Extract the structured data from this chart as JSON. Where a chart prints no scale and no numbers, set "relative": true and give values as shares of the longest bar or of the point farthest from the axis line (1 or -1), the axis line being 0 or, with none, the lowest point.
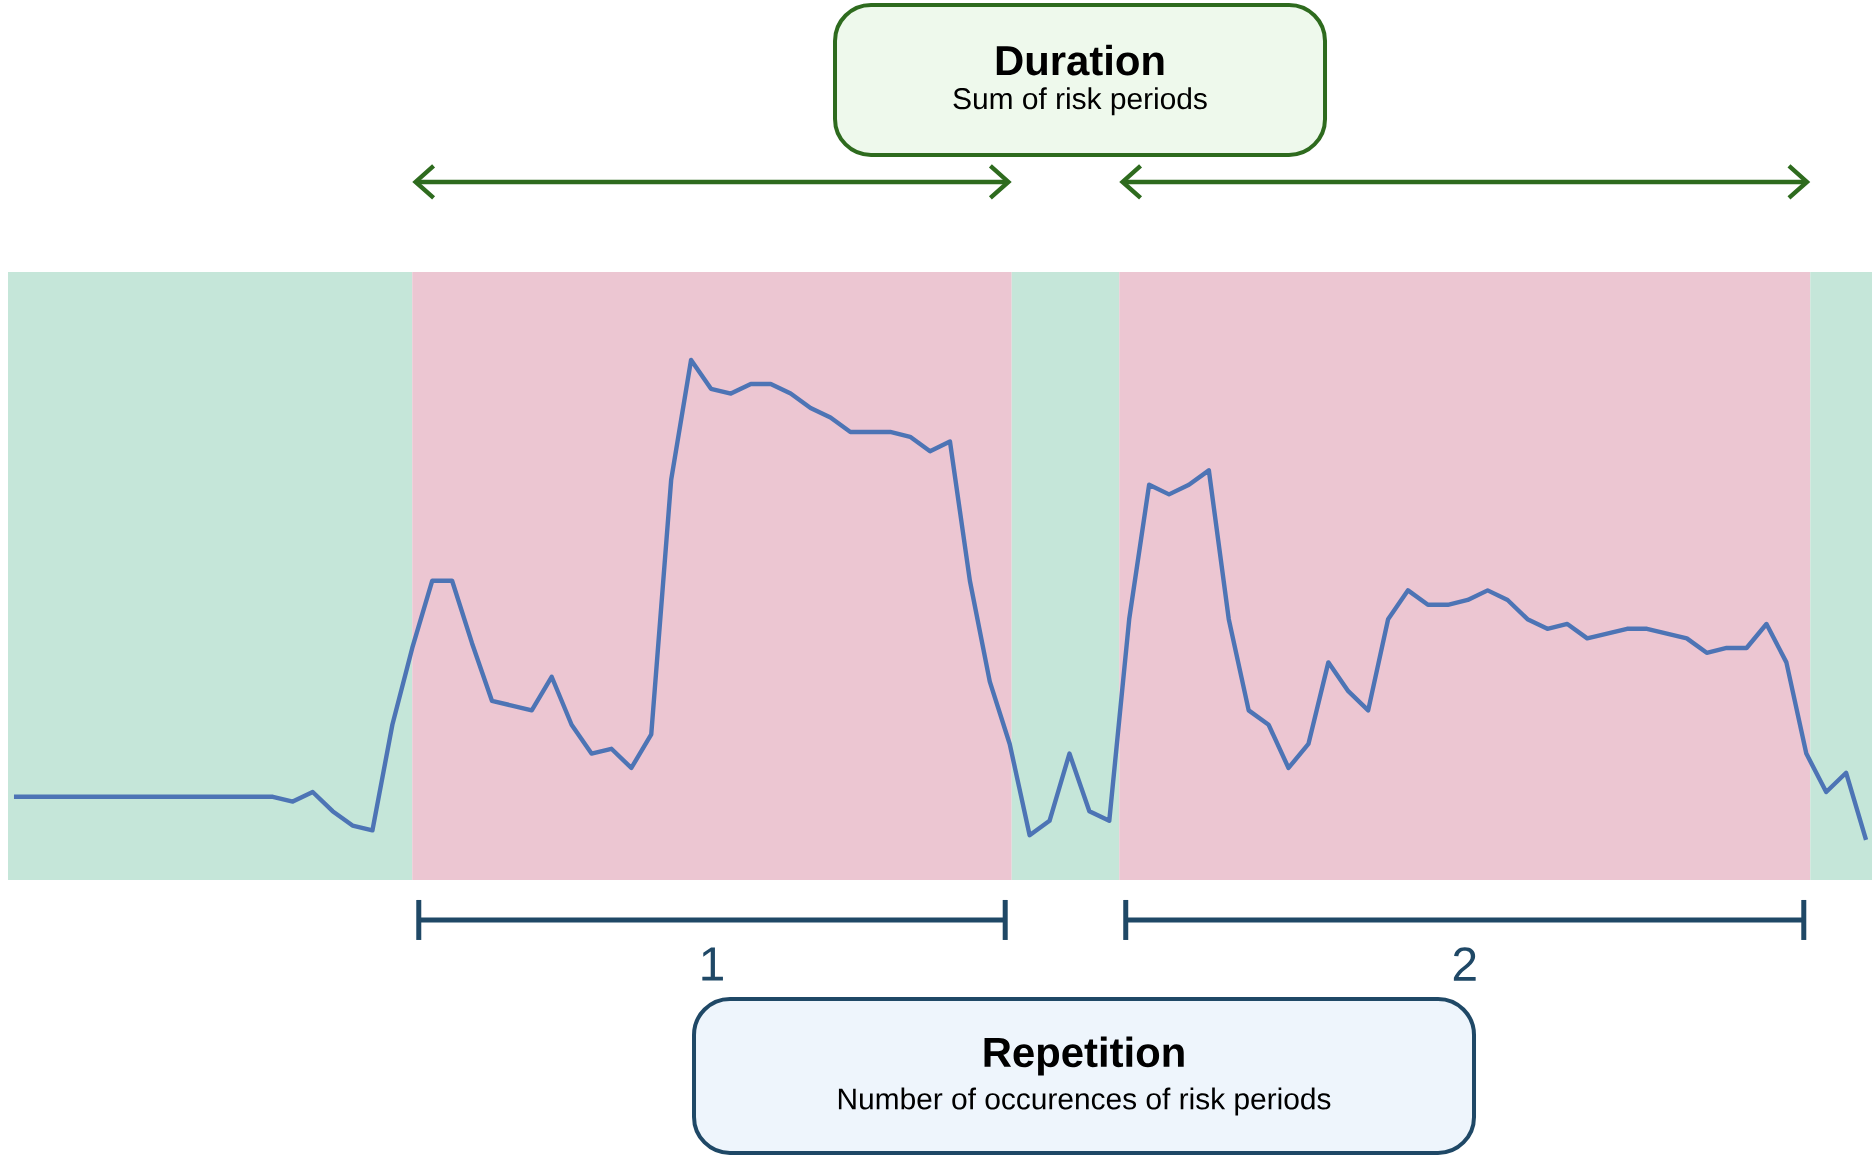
{
  "chart_data": {
    "type": "line",
    "relative": true,
    "categories": [
      null,
      null,
      null,
      null,
      null,
      null,
      null,
      null,
      null,
      null,
      null,
      null,
      null,
      null,
      null,
      null,
      null,
      null,
      null,
      null,
      null,
      null,
      null,
      null,
      null,
      null,
      null,
      null,
      null,
      null,
      null,
      null,
      null,
      null,
      null,
      null,
      null,
      null,
      null,
      null,
      null,
      null,
      null,
      null,
      null,
      null,
      null,
      null,
      null,
      null,
      null,
      null,
      null,
      null,
      null,
      null,
      null,
      null,
      null,
      null,
      null,
      null,
      null,
      null,
      null,
      null,
      null,
      null,
      null,
      null,
      null,
      null,
      null,
      null,
      null,
      null,
      null,
      null,
      null,
      null,
      null,
      null,
      null,
      null,
      null,
      null,
      null,
      null,
      null,
      null,
      null,
      null,
      null,
      null
    ],
    "values": [
      0.09,
      0.09,
      0.09,
      0.09,
      0.09,
      0.09,
      0.09,
      0.09,
      0.09,
      0.09,
      0.09,
      0.09,
      0.09,
      0.09,
      0.08,
      0.1,
      0.06,
      0.03,
      0.02,
      0.24,
      0.4,
      0.54,
      0.54,
      0.41,
      0.29,
      0.28,
      0.27,
      0.34,
      0.24,
      0.18,
      0.19,
      0.15,
      0.22,
      0.75,
      1.0,
      0.94,
      0.93,
      0.95,
      0.95,
      0.93,
      0.9,
      0.88,
      0.85,
      0.85,
      0.85,
      0.84,
      0.81,
      0.83,
      0.54,
      0.33,
      0.2,
      0.01,
      0.04,
      0.18,
      0.06,
      0.04,
      0.46,
      0.74,
      0.72,
      0.74,
      0.77,
      0.46,
      0.27,
      0.24,
      0.15,
      0.2,
      0.37,
      0.31,
      0.27,
      0.46,
      0.52,
      0.49,
      0.49,
      0.5,
      0.52,
      0.5,
      0.46,
      0.44,
      0.45,
      0.42,
      0.43,
      0.44,
      0.44,
      0.43,
      0.42,
      0.39,
      0.4,
      0.4,
      0.45,
      0.37,
      0.18,
      0.1,
      0.14,
      0.0
    ],
    "color": "#4d74b5",
    "annotations": [
      "Duration",
      "Sum of risk periods",
      "Repetition",
      "Number of occurences of risk periods",
      "1",
      "2"
    ]
  }
}
